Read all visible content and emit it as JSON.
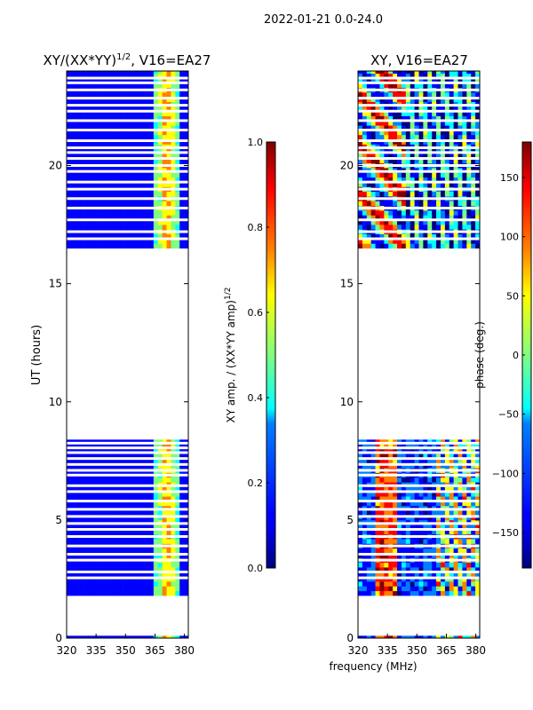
{
  "figure": {
    "suptitle": "2022-01-21 0.0-24.0",
    "xlabel": "frequency (MHz)"
  },
  "chart_data": [
    {
      "type": "heatmap",
      "title_main": "XY/(XX*YY)",
      "title_exp": "1/2",
      "title_tail": ", V16=EA27",
      "xlabel": "",
      "ylabel": "UT (hours)",
      "xlim": [
        320,
        382
      ],
      "ylim": [
        0,
        24
      ],
      "xticks": [
        320,
        335,
        350,
        365,
        380
      ],
      "yticks": [
        0,
        5,
        10,
        15,
        20
      ],
      "data_bands_hours": [
        [
          0.0,
          0.1
        ],
        [
          1.8,
          8.4
        ],
        [
          16.5,
          24.0
        ]
      ],
      "blank_rows_hours": [
        2.55,
        2.8,
        3.3,
        3.55,
        3.9,
        4.3,
        4.6,
        4.85,
        5.15,
        5.45,
        5.8,
        6.2,
        6.45,
        6.9,
        7.1,
        7.35,
        7.6,
        7.85,
        8.05,
        8.25,
        16.9,
        17.2,
        17.7,
        18.2,
        18.6,
        19.0,
        19.3,
        19.75,
        20.0,
        20.3,
        20.55,
        20.75,
        21.05,
        21.5,
        21.9,
        22.3,
        22.55,
        22.85,
        23.2,
        23.5,
        23.7
      ],
      "scheme": "amp",
      "colorbar": {
        "label_main": "XY amp. / (XX*YY amp)",
        "label_exp": "1/2",
        "vmin": 0.0,
        "vmax": 1.0,
        "ticks": [
          0.0,
          0.2,
          0.4,
          0.6,
          0.8,
          1.0
        ],
        "tick_labels": [
          "0.0",
          "0.2",
          "0.4",
          "0.6",
          "0.8",
          "1.0"
        ]
      }
    },
    {
      "type": "heatmap",
      "title_main": "XY, V16=EA27",
      "title_exp": "",
      "title_tail": "",
      "xlabel": "",
      "ylabel": "",
      "xlim": [
        320,
        382
      ],
      "ylim": [
        0,
        24
      ],
      "xticks": [
        320,
        335,
        350,
        365,
        380
      ],
      "yticks": [
        0,
        5,
        10,
        15,
        20
      ],
      "data_bands_hours": [
        [
          0.0,
          0.1
        ],
        [
          1.8,
          8.4
        ],
        [
          16.5,
          24.0
        ]
      ],
      "blank_rows_hours": [
        2.55,
        2.8,
        3.3,
        3.55,
        3.9,
        4.3,
        4.6,
        4.85,
        5.15,
        5.45,
        5.8,
        6.2,
        6.45,
        6.9,
        7.1,
        7.35,
        7.6,
        7.85,
        8.05,
        8.25,
        16.9,
        17.2,
        17.7,
        18.2,
        18.6,
        19.0,
        19.3,
        19.75,
        20.0,
        20.3,
        20.55,
        20.75,
        21.05,
        21.5,
        21.9,
        22.3,
        22.55,
        22.85,
        23.2,
        23.5,
        23.7
      ],
      "scheme": "phase",
      "colorbar": {
        "label_main": "phase (deg.)",
        "label_exp": "",
        "vmin": -180,
        "vmax": 180,
        "ticks": [
          -150,
          -100,
          -50,
          0,
          50,
          100,
          150
        ],
        "tick_labels": [
          "−150",
          "−100",
          "−50",
          "0",
          "50",
          "100",
          "150"
        ]
      }
    }
  ],
  "colormap": [
    "#00007f",
    "#0000ff",
    "#007fff",
    "#00ffff",
    "#7fff7f",
    "#ffff00",
    "#ff7f00",
    "#ff0000",
    "#7f0000"
  ]
}
